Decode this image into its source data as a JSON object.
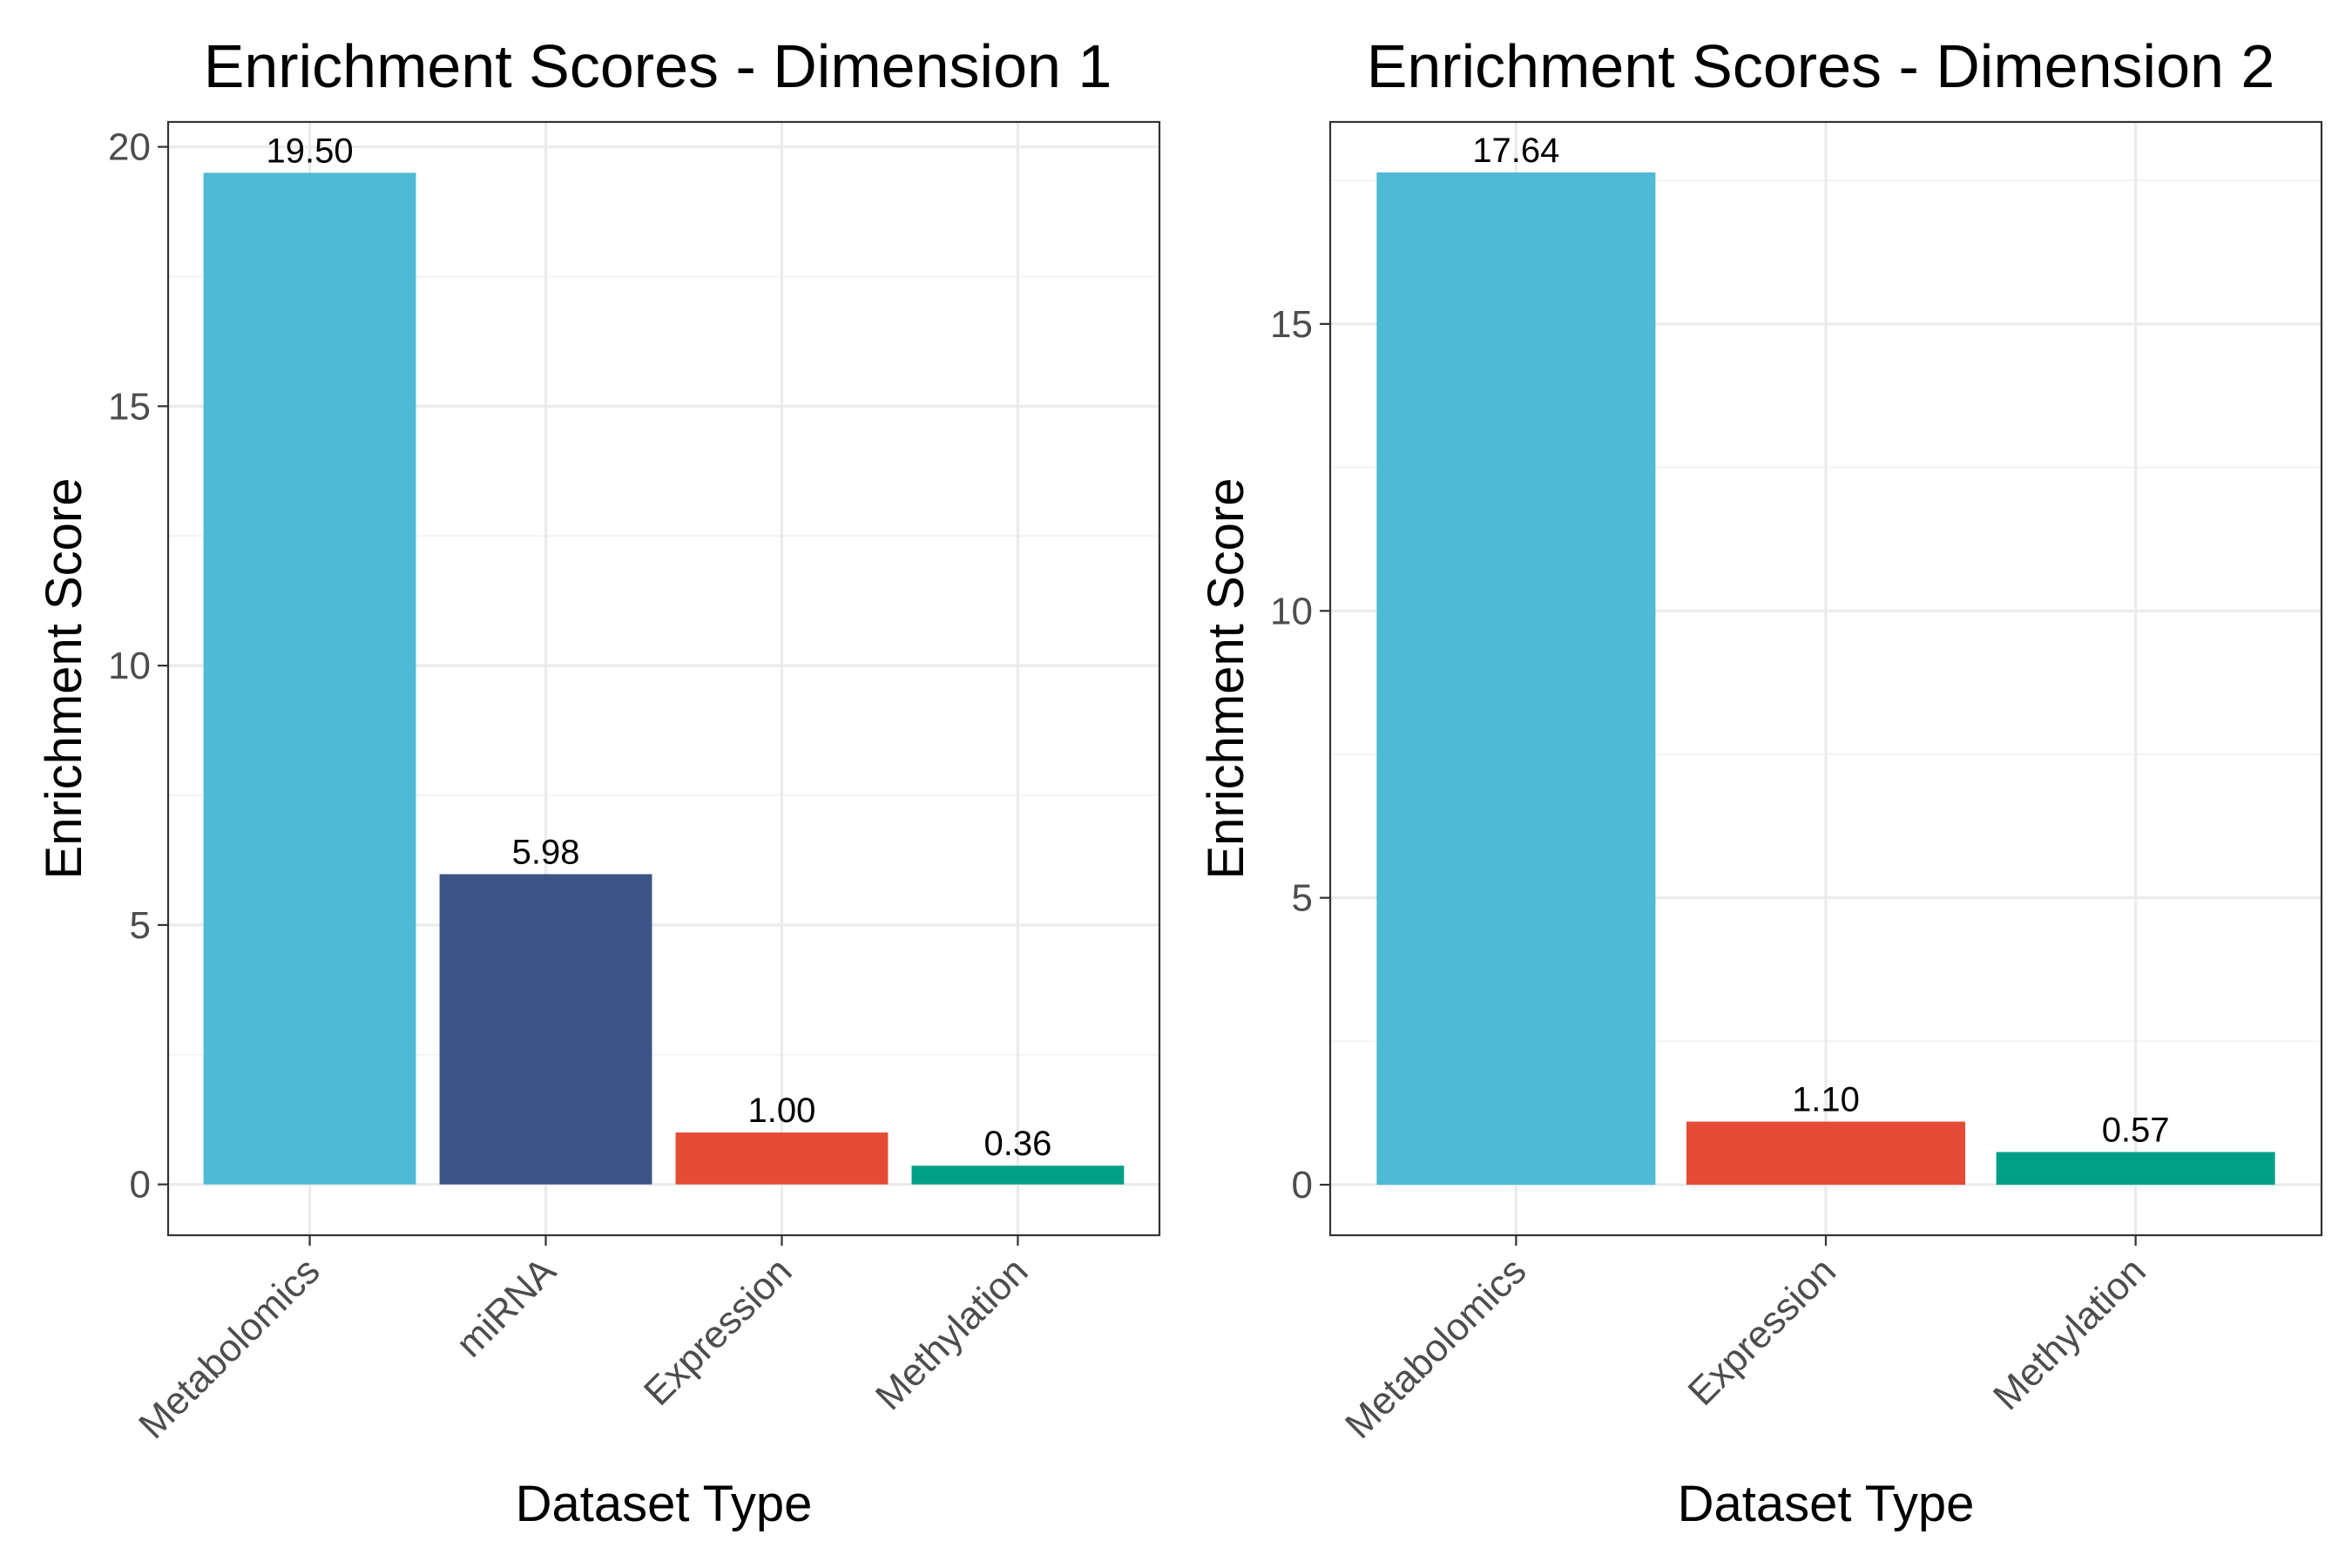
{
  "chart_data": [
    {
      "type": "bar",
      "title": "Enrichment Scores - Dimension 1",
      "xlabel": "Dataset Type",
      "ylabel": "Enrichment Score",
      "categories": [
        "Metabolomics",
        "miRNA",
        "Expression",
        "Methylation"
      ],
      "values": [
        19.5,
        5.98,
        1.0,
        0.36
      ],
      "value_labels": [
        "19.50",
        "5.98",
        "1.00",
        "0.36"
      ],
      "colors": [
        "#4EBAD5",
        "#3C5485",
        "#E64B35",
        "#00A087"
      ],
      "ylim": [
        -0.98,
        20.48
      ],
      "yticks": [
        0,
        5,
        10,
        15,
        20
      ],
      "grid": true,
      "legend": "none"
    },
    {
      "type": "bar",
      "title": "Enrichment Scores - Dimension 2",
      "xlabel": "Dataset Type",
      "ylabel": "Enrichment Score",
      "categories": [
        "Metabolomics",
        "Expression",
        "Methylation"
      ],
      "values": [
        17.64,
        1.1,
        0.57
      ],
      "value_labels": [
        "17.64",
        "1.10",
        "0.57"
      ],
      "colors": [
        "#4EBAD5",
        "#E64B35",
        "#00A087"
      ],
      "ylim": [
        -0.88,
        18.52
      ],
      "yticks": [
        0,
        5,
        10,
        15
      ],
      "grid": true,
      "legend": "none"
    }
  ]
}
